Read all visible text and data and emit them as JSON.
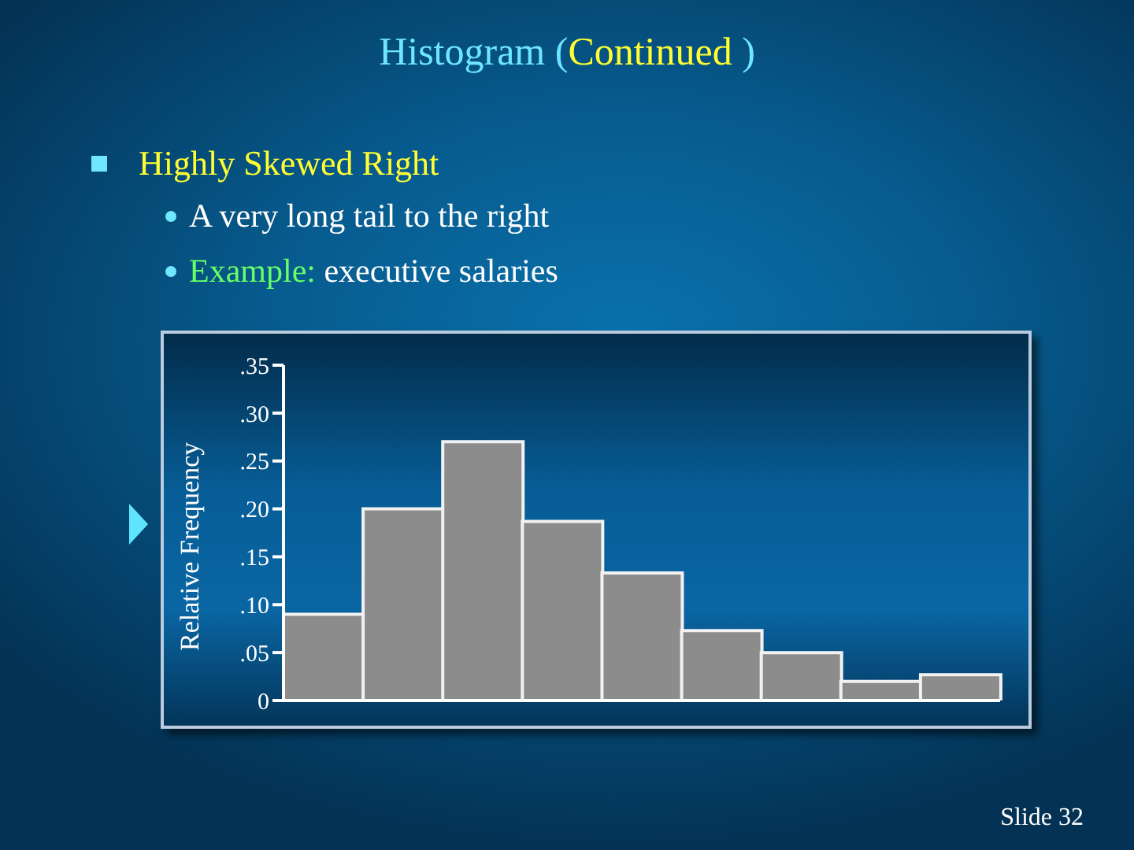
{
  "chart_data": {
    "type": "bar",
    "title": "Histogram (Continued )",
    "annotations": [
      "Highly Skewed Right",
      "A very long tail to the right",
      "Example: executive salaries",
      "Slide 32"
    ],
    "ylabel": "Relative Frequency",
    "categories": [
      null,
      null,
      null,
      null,
      null,
      null,
      null,
      null,
      null
    ],
    "values": [
      0.09,
      0.2,
      0.27,
      0.187,
      0.133,
      0.073,
      0.05,
      0.02,
      0.027
    ],
    "color": "#8c8c8c",
    "ylim": [
      0,
      0.35
    ],
    "yticks": [
      0,
      {
        "value": 0.05,
        "label": ".05"
      },
      {
        "value": 0.1,
        "label": ".10"
      },
      {
        "value": 0.15,
        "label": ".15"
      },
      {
        "value": 0.2,
        "label": ".20"
      },
      {
        "value": 0.25,
        "label": ".25"
      },
      {
        "value": 0.3,
        "label": ".30"
      },
      {
        "value": 0.35,
        "label": ".35"
      }
    ],
    "tick_labels": "y"
  }
}
